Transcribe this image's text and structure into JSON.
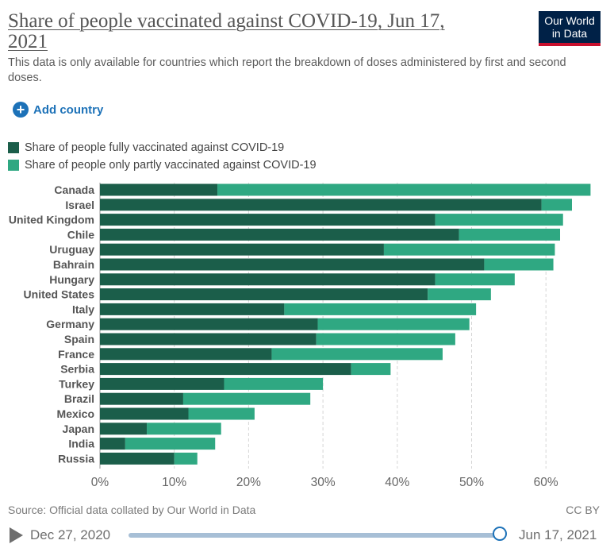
{
  "header": {
    "title": "Share of people vaccinated against COVID-19, Jun 17, 2021",
    "subtitle": "This data is only available for countries which report the breakdown of doses administered by first and second doses.",
    "logo_line1": "Our World",
    "logo_line2": "in Data"
  },
  "controls": {
    "add_country_label": "Add country"
  },
  "legend": [
    {
      "label": "Share of people fully vaccinated against COVID-19",
      "color": "#1b5e4a"
    },
    {
      "label": "Share of people only partly vaccinated against COVID-19",
      "color": "#2fa882"
    }
  ],
  "chart_data": {
    "type": "bar",
    "orientation": "horizontal",
    "stacked": true,
    "categories": [
      "Canada",
      "Israel",
      "United Kingdom",
      "Chile",
      "Uruguay",
      "Bahrain",
      "Hungary",
      "United States",
      "Italy",
      "Germany",
      "Spain",
      "France",
      "Serbia",
      "Turkey",
      "Brazil",
      "Mexico",
      "Japan",
      "India",
      "Russia"
    ],
    "series": [
      {
        "name": "Share of people fully vaccinated against COVID-19",
        "color": "#1b5e4a",
        "values": [
          15.8,
          59.4,
          45.1,
          48.3,
          38.2,
          51.7,
          45.1,
          44.1,
          24.8,
          29.3,
          29.1,
          23.1,
          33.8,
          16.7,
          11.2,
          11.9,
          6.3,
          3.4,
          10.0
        ]
      },
      {
        "name": "Share of people only partly vaccinated against COVID-19",
        "color": "#2fa882",
        "values": [
          50.2,
          4.1,
          17.2,
          13.6,
          23.0,
          9.3,
          10.7,
          8.5,
          25.8,
          20.4,
          18.7,
          23.0,
          5.3,
          13.3,
          17.1,
          8.9,
          10.0,
          12.1,
          3.1
        ]
      }
    ],
    "xlim": [
      0,
      66
    ],
    "xticks": [
      0,
      10,
      20,
      30,
      40,
      50,
      60
    ],
    "xtick_labels": [
      "0%",
      "10%",
      "20%",
      "30%",
      "40%",
      "50%",
      "60%"
    ],
    "grid": "vertical dashed",
    "legend_position": "top-left"
  },
  "footer": {
    "source": "Source: Official data collated by Our World in Data",
    "license": "CC BY"
  },
  "timeline": {
    "start_date": "Dec 27, 2020",
    "end_date": "Jun 17, 2021",
    "position": 1.0
  }
}
